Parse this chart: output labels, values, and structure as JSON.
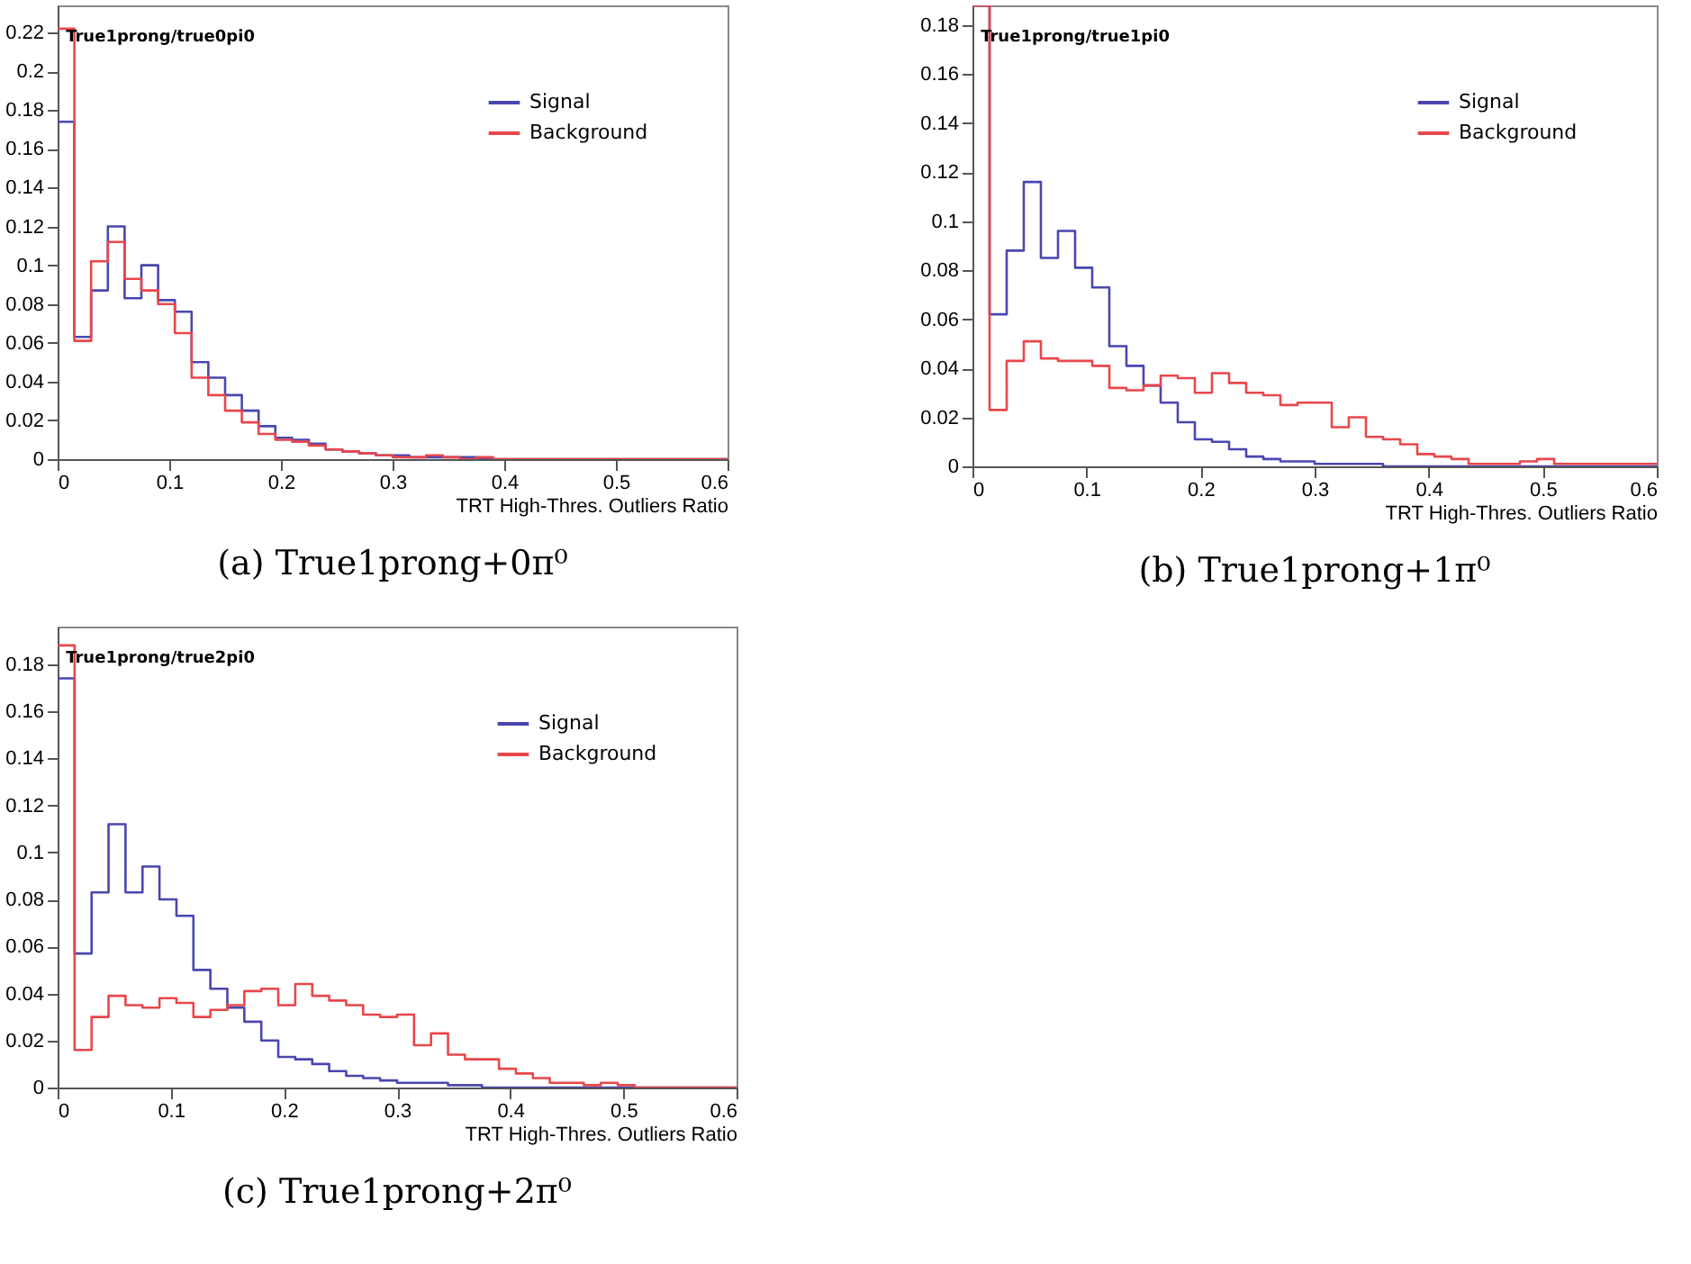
{
  "chart_data": [
    {
      "type": "histogram",
      "title": "True1prong/true0pi0",
      "xlabel": "TRT High-Thres. Outliers Ratio",
      "annotations": [
        "(a) True1prong+0π⁰"
      ],
      "legend": "top right",
      "xlim": [
        0,
        0.6
      ],
      "ylim": [
        0,
        0.234
      ],
      "xticks": [
        0,
        0.1,
        0.2,
        0.3,
        0.4,
        0.5,
        0.6
      ],
      "yticks": [
        0,
        0.02,
        0.04,
        0.06,
        0.08,
        0.1,
        0.12,
        0.14,
        0.16,
        0.18,
        0.2,
        0.22
      ],
      "bins": [
        0,
        0.015,
        0.03,
        0.045,
        0.06,
        0.075,
        0.09,
        0.105,
        0.12,
        0.135,
        0.15,
        0.165,
        0.18,
        0.195,
        0.21,
        0.225,
        0.24,
        0.255,
        0.27,
        0.285,
        0.3,
        0.315,
        0.33,
        0.345,
        0.36,
        0.375,
        0.39,
        0.405,
        0.42,
        0.435,
        0.45,
        0.465,
        0.48,
        0.495,
        0.51,
        0.525,
        0.54,
        0.555,
        0.57,
        0.585,
        0.6
      ],
      "series": [
        {
          "name": "Signal",
          "color": "#4a46b0",
          "values": [
            0.174,
            0.063,
            0.087,
            0.12,
            0.083,
            0.1,
            0.082,
            0.076,
            0.05,
            0.042,
            0.033,
            0.025,
            0.017,
            0.011,
            0.01,
            0.008,
            0.005,
            0.004,
            0.003,
            0.002,
            0.002,
            0.001,
            0.001,
            0.001,
            0.001,
            0,
            0,
            0,
            0,
            0,
            0,
            0,
            0,
            0,
            0,
            0,
            0,
            0,
            0,
            0
          ]
        },
        {
          "name": "Background",
          "color": "#e8474b",
          "values": [
            0.222,
            0.061,
            0.102,
            0.112,
            0.093,
            0.087,
            0.08,
            0.065,
            0.042,
            0.033,
            0.025,
            0.019,
            0.013,
            0.01,
            0.009,
            0.007,
            0.005,
            0.004,
            0.003,
            0.002,
            0.001,
            0.001,
            0.002,
            0.001,
            0,
            0.001,
            0,
            0,
            0,
            0,
            0,
            0,
            0,
            0,
            0,
            0,
            0,
            0,
            0,
            0
          ]
        }
      ]
    },
    {
      "type": "histogram",
      "title": "True1prong/true1pi0",
      "xlabel": "TRT High-Thres. Outliers Ratio",
      "annotations": [
        "(b) True1prong+1π⁰"
      ],
      "legend": "top right",
      "xlim": [
        0,
        0.6
      ],
      "ylim": [
        0,
        0.188
      ],
      "xticks": [
        0,
        0.1,
        0.2,
        0.3,
        0.4,
        0.5,
        0.6
      ],
      "yticks": [
        0,
        0.02,
        0.04,
        0.06,
        0.08,
        0.1,
        0.12,
        0.14,
        0.16,
        0.18
      ],
      "bins": [
        0,
        0.015,
        0.03,
        0.045,
        0.06,
        0.075,
        0.09,
        0.105,
        0.12,
        0.135,
        0.15,
        0.165,
        0.18,
        0.195,
        0.21,
        0.225,
        0.24,
        0.255,
        0.27,
        0.285,
        0.3,
        0.315,
        0.33,
        0.345,
        0.36,
        0.375,
        0.39,
        0.405,
        0.42,
        0.435,
        0.45,
        0.465,
        0.48,
        0.495,
        0.51,
        0.525,
        0.54,
        0.555,
        0.57,
        0.585,
        0.6
      ],
      "series": [
        {
          "name": "Signal",
          "color": "#4a46b0",
          "values": [
            0.188,
            0.062,
            0.088,
            0.116,
            0.085,
            0.096,
            0.081,
            0.073,
            0.049,
            0.041,
            0.033,
            0.026,
            0.018,
            0.011,
            0.01,
            0.007,
            0.004,
            0.003,
            0.002,
            0.002,
            0.001,
            0.001,
            0.001,
            0.001,
            0,
            0,
            0,
            0,
            0,
            0,
            0,
            0,
            0,
            0,
            0,
            0,
            0,
            0,
            0,
            0
          ]
        },
        {
          "name": "Background",
          "color": "#e8474b",
          "values": [
            0.188,
            0.023,
            0.043,
            0.051,
            0.044,
            0.043,
            0.043,
            0.041,
            0.032,
            0.031,
            0.033,
            0.037,
            0.036,
            0.03,
            0.038,
            0.034,
            0.03,
            0.029,
            0.025,
            0.026,
            0.026,
            0.016,
            0.02,
            0.012,
            0.011,
            0.009,
            0.005,
            0.004,
            0.003,
            0.001,
            0.001,
            0.001,
            0.002,
            0.003,
            0.001,
            0.001,
            0.001,
            0.001,
            0.001,
            0.001
          ]
        }
      ]
    },
    {
      "type": "histogram",
      "title": "True1prong/true2pi0",
      "xlabel": "TRT High-Thres. Outliers Ratio",
      "annotations": [
        "(c) True1prong+2π⁰"
      ],
      "legend": "top right",
      "xlim": [
        0,
        0.6
      ],
      "ylim": [
        0,
        0.196
      ],
      "xticks": [
        0,
        0.1,
        0.2,
        0.3,
        0.4,
        0.5,
        0.6
      ],
      "yticks": [
        0,
        0.02,
        0.04,
        0.06,
        0.08,
        0.1,
        0.12,
        0.14,
        0.16,
        0.18
      ],
      "bins": [
        0,
        0.015,
        0.03,
        0.045,
        0.06,
        0.075,
        0.09,
        0.105,
        0.12,
        0.135,
        0.15,
        0.165,
        0.18,
        0.195,
        0.21,
        0.225,
        0.24,
        0.255,
        0.27,
        0.285,
        0.3,
        0.315,
        0.33,
        0.345,
        0.36,
        0.375,
        0.39,
        0.405,
        0.42,
        0.435,
        0.45,
        0.465,
        0.48,
        0.495,
        0.51,
        0.525,
        0.54,
        0.555,
        0.57,
        0.585,
        0.6
      ],
      "series": [
        {
          "name": "Signal",
          "color": "#4a46b0",
          "values": [
            0.174,
            0.057,
            0.083,
            0.112,
            0.083,
            0.094,
            0.08,
            0.073,
            0.05,
            0.042,
            0.034,
            0.028,
            0.02,
            0.013,
            0.012,
            0.01,
            0.007,
            0.005,
            0.004,
            0.003,
            0.002,
            0.002,
            0.002,
            0.001,
            0.001,
            0,
            0,
            0,
            0,
            0,
            0,
            0,
            0,
            0,
            0,
            0,
            0,
            0,
            0,
            0
          ]
        },
        {
          "name": "Background",
          "color": "#e8474b",
          "values": [
            0.188,
            0.016,
            0.03,
            0.039,
            0.035,
            0.034,
            0.038,
            0.036,
            0.03,
            0.033,
            0.035,
            0.041,
            0.042,
            0.035,
            0.044,
            0.039,
            0.037,
            0.035,
            0.031,
            0.03,
            0.031,
            0.018,
            0.023,
            0.014,
            0.012,
            0.012,
            0.008,
            0.006,
            0.004,
            0.002,
            0.002,
            0.001,
            0.002,
            0.001,
            0,
            0,
            0,
            0,
            0,
            0
          ]
        }
      ]
    }
  ]
}
